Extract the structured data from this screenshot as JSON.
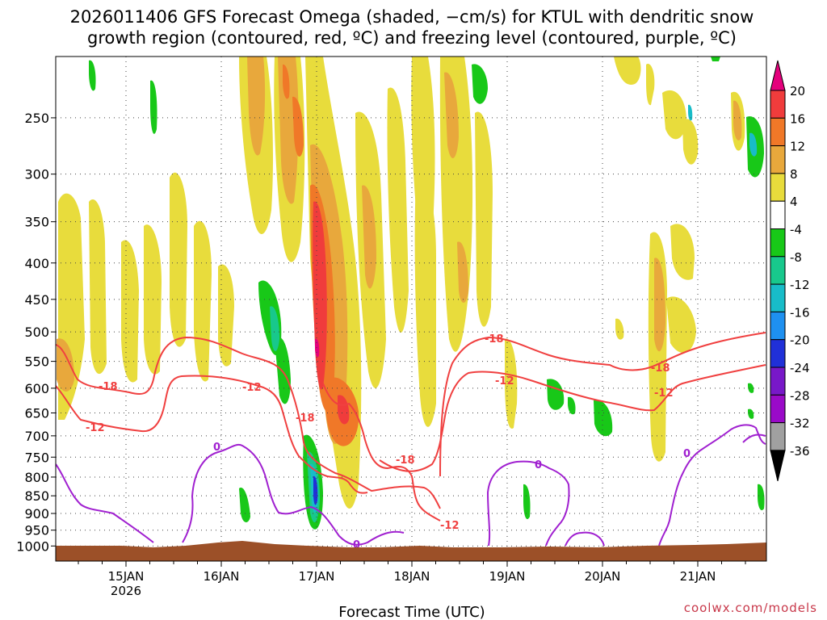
{
  "chart_data": {
    "type": "heatmap",
    "title_line1": "2026011406 GFS Forecast Omega (shaded, −cm/s) for KTUL with dendritic snow",
    "title_line2": "growth region (contoured, red, ºC) and freezing level (contoured, purple, ºC)",
    "xlabel": "Forecast Time (UTC)",
    "credit": "coolwx.com/models",
    "y_levels": [
      "250",
      "300",
      "350",
      "400",
      "450",
      "500",
      "550",
      "600",
      "650",
      "700",
      "750",
      "800",
      "850",
      "900",
      "950",
      "1000"
    ],
    "x_ticks": [
      "15JAN",
      "16JAN",
      "17JAN",
      "18JAN",
      "19JAN",
      "20JAN",
      "21JAN"
    ],
    "x_year": "2026",
    "colorbar_labels": [
      "20",
      "16",
      "12",
      "8",
      "4",
      "-4",
      "-8",
      "-12",
      "-16",
      "-20",
      "-24",
      "-28",
      "-32",
      "-36"
    ],
    "colorbar_colors": [
      "#e4007c",
      "#f03c3c",
      "#f07828",
      "#e8a83c",
      "#e8dc3c",
      "#ffffff",
      "#18c818",
      "#18c88c",
      "#18bcc8",
      "#1e90f0",
      "#2030d8",
      "#7818c8",
      "#9a0ac8",
      "#a0a0a0",
      "#000000"
    ],
    "contour_labels": {
      "dgz_minus18": "-18",
      "dgz_minus12": "-12",
      "freezing_zero": "0"
    },
    "colors": {
      "dgz": "#f04040",
      "freezing": "#a020d0",
      "terrain": "#9c5028"
    }
  }
}
